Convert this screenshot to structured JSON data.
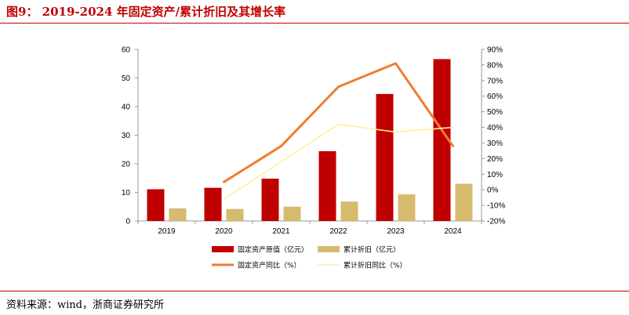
{
  "header": {
    "title": "图9： 2019-2024 年固定资产/累计折旧及其增长率"
  },
  "footer": {
    "source": "资料来源：wind，浙商证券研究所"
  },
  "colors": {
    "accent": "#c00000",
    "bar1": "#c00000",
    "bar2": "#d6bb6e",
    "line1": "#ed7d31",
    "line2": "#ffef9a"
  },
  "chart_data": {
    "type": "bar",
    "categories": [
      "2019",
      "2020",
      "2021",
      "2022",
      "2023",
      "2024"
    ],
    "series": [
      {
        "name": "固定资产原值（亿元）",
        "type": "bar",
        "axis": "left",
        "values": [
          11.1,
          11.6,
          14.8,
          24.4,
          44.4,
          56.6
        ]
      },
      {
        "name": "累计折旧（亿元）",
        "type": "bar",
        "axis": "left",
        "values": [
          4.4,
          4.2,
          5.0,
          6.8,
          9.3,
          13.0
        ]
      },
      {
        "name": "固定资产同比（%）",
        "type": "line",
        "axis": "right",
        "values": [
          null,
          5,
          28,
          66,
          81,
          28
        ]
      },
      {
        "name": "累计折旧同比（%）",
        "type": "line",
        "axis": "right",
        "values": [
          null,
          -6,
          18,
          42,
          37,
          40
        ]
      }
    ],
    "y_left": {
      "min": 0,
      "max": 60,
      "ticks": [
        "0",
        "10",
        "20",
        "30",
        "40",
        "50",
        "60"
      ]
    },
    "y_right": {
      "min": -20,
      "max": 90,
      "ticks": [
        "-20%",
        "-10%",
        "0%",
        "10%",
        "20%",
        "30%",
        "40%",
        "50%",
        "60%",
        "70%",
        "80%",
        "90%"
      ]
    },
    "legend_position": "bottom",
    "grid": false
  }
}
